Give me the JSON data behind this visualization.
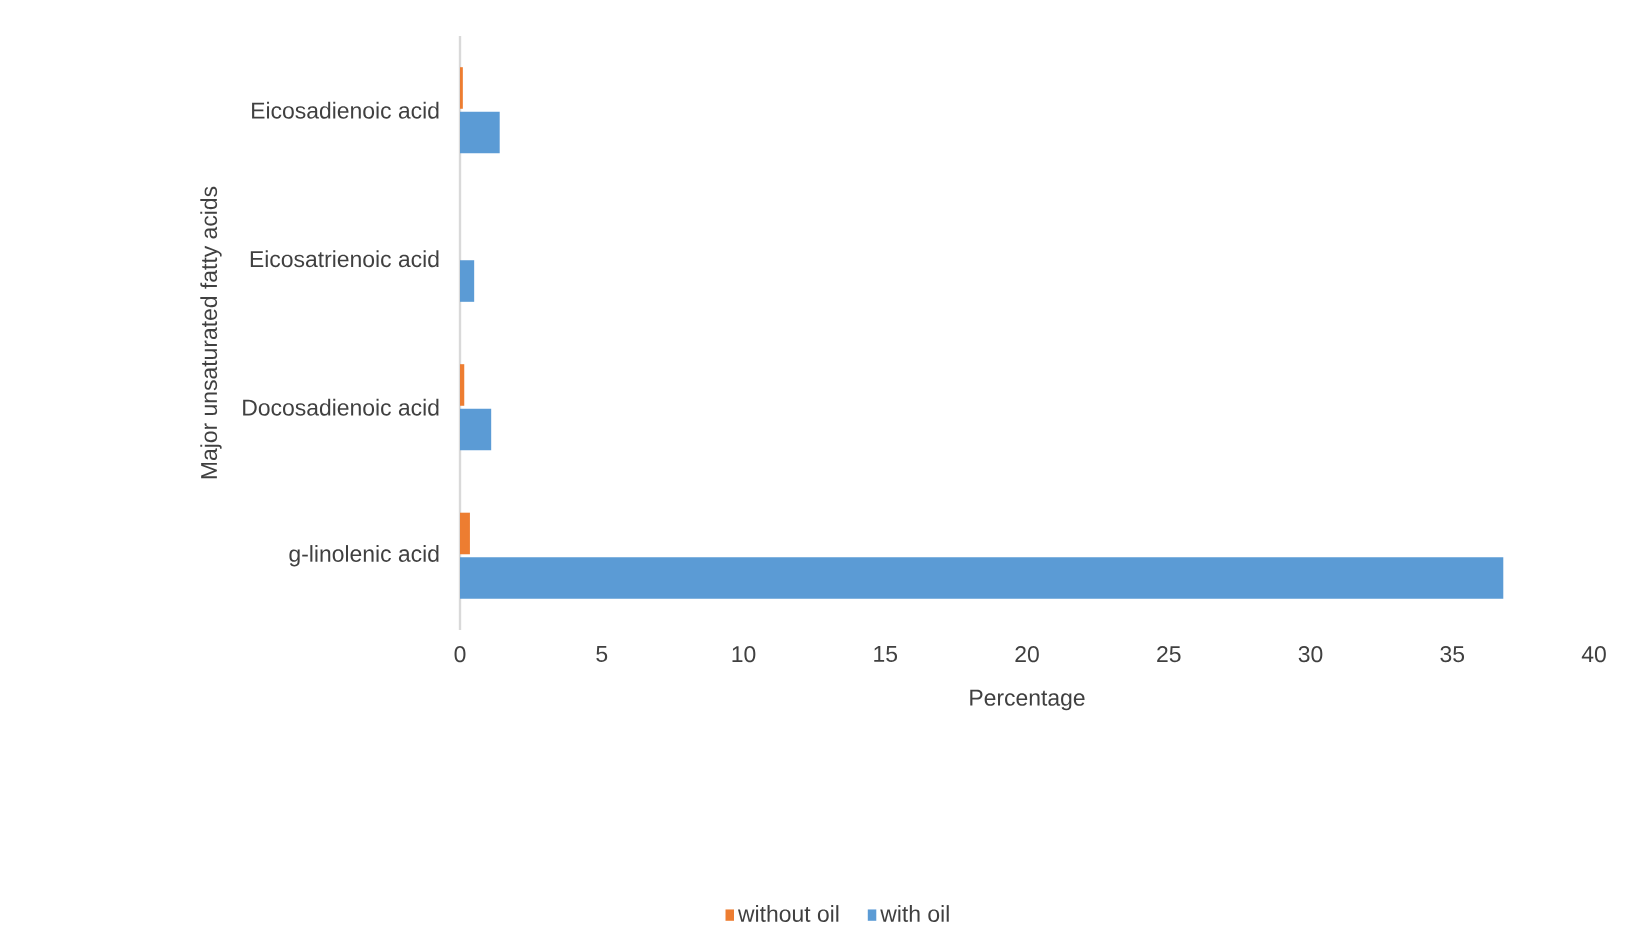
{
  "chart_data": {
    "type": "bar",
    "orientation": "horizontal",
    "xlabel": "Percentage",
    "ylabel": "Major unsaturated fatty acids",
    "categories": [
      "Eicosadienoic acid",
      "Eicosatrienoic acid",
      "Docosadienoic acid",
      "g-linolenic acid"
    ],
    "series": [
      {
        "name": "without oil",
        "color": "#ed7d31",
        "values": [
          0.1,
          0,
          0.15,
          0.35
        ]
      },
      {
        "name": "with oil",
        "color": "#5b9bd5",
        "values": [
          1.4,
          0.5,
          1.1,
          36.8
        ]
      }
    ],
    "xlim": [
      0,
      40
    ],
    "xticks": [
      0,
      5,
      10,
      15,
      20,
      25,
      30,
      35,
      40
    ],
    "grid": false,
    "legend": "bottom"
  }
}
